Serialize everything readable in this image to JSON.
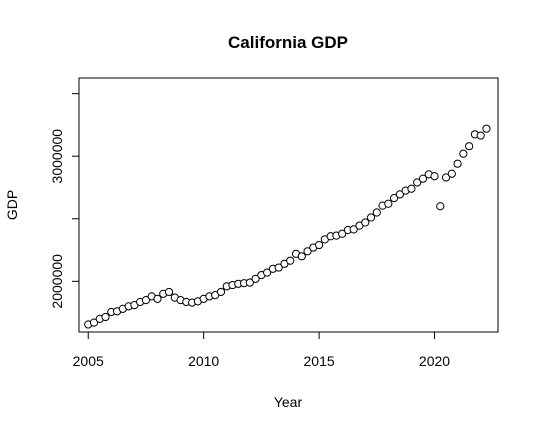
{
  "chart_data": {
    "type": "scatter",
    "title": "California GDP",
    "xlabel": "Year",
    "ylabel": "GDP",
    "xlim": [
      2004.6,
      2022.75
    ],
    "ylim": [
      1595000,
      3625000
    ],
    "x_ticks": [
      2005,
      2010,
      2015,
      2020
    ],
    "x_tick_labels": [
      "2005",
      "2010",
      "2015",
      "2020"
    ],
    "y_ticks": [
      2000000,
      2500000,
      3000000,
      3500000
    ],
    "y_tick_labels": [
      "2000000",
      "",
      "3000000",
      ""
    ],
    "grid": false,
    "legend": "none",
    "point_style": "open-circle",
    "x": [
      2005.0,
      2005.25,
      2005.5,
      2005.75,
      2006.0,
      2006.25,
      2006.5,
      2006.75,
      2007.0,
      2007.25,
      2007.5,
      2007.75,
      2008.0,
      2008.25,
      2008.5,
      2008.75,
      2009.0,
      2009.25,
      2009.5,
      2009.75,
      2010.0,
      2010.25,
      2010.5,
      2010.75,
      2011.0,
      2011.25,
      2011.5,
      2011.75,
      2012.0,
      2012.25,
      2012.5,
      2012.75,
      2013.0,
      2013.25,
      2013.5,
      2013.75,
      2014.0,
      2014.25,
      2014.5,
      2014.75,
      2015.0,
      2015.25,
      2015.5,
      2015.75,
      2016.0,
      2016.25,
      2016.5,
      2016.75,
      2017.0,
      2017.25,
      2017.5,
      2017.75,
      2018.0,
      2018.25,
      2018.5,
      2018.75,
      2019.0,
      2019.25,
      2019.5,
      2019.75,
      2020.0,
      2020.25,
      2020.5,
      2020.75,
      2021.0,
      2021.25,
      2021.5,
      2021.75,
      2022.0,
      2022.25
    ],
    "y": [
      1655000,
      1670000,
      1700000,
      1715000,
      1755000,
      1760000,
      1780000,
      1800000,
      1810000,
      1835000,
      1850000,
      1880000,
      1860000,
      1900000,
      1915000,
      1870000,
      1850000,
      1835000,
      1830000,
      1840000,
      1860000,
      1880000,
      1890000,
      1915000,
      1960000,
      1970000,
      1980000,
      1985000,
      1990000,
      2020000,
      2050000,
      2070000,
      2100000,
      2110000,
      2140000,
      2165000,
      2220000,
      2200000,
      2240000,
      2270000,
      2290000,
      2335000,
      2360000,
      2365000,
      2380000,
      2410000,
      2415000,
      2445000,
      2470000,
      2510000,
      2550000,
      2605000,
      2620000,
      2665000,
      2695000,
      2725000,
      2740000,
      2790000,
      2820000,
      2855000,
      2840000,
      2600000,
      2830000,
      2860000,
      2940000,
      3020000,
      3080000,
      3175000,
      3165000,
      3220000
    ]
  }
}
